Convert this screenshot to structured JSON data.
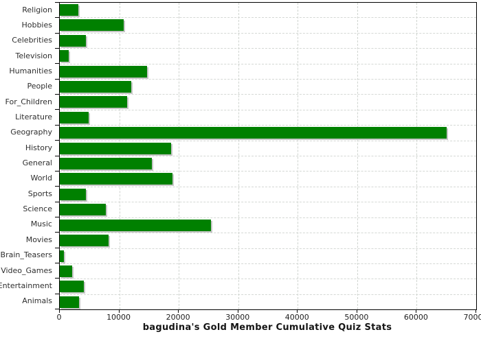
{
  "chart_data": {
    "type": "bar",
    "orientation": "horizontal",
    "title": "bagudina's Gold Member Cumulative Quiz Stats",
    "categories": [
      "Religion",
      "Hobbies",
      "Celebrities",
      "Television",
      "Humanities",
      "People",
      "For_Children",
      "Literature",
      "Geography",
      "History",
      "General",
      "World",
      "Sports",
      "Science",
      "Music",
      "Movies",
      "Brain_Teasers",
      "Video_Games",
      "Entertainment",
      "Animals"
    ],
    "values": [
      3150,
      10700,
      4400,
      1500,
      14700,
      12000,
      11300,
      4850,
      65000,
      18700,
      15500,
      19000,
      4400,
      7750,
      25400,
      8200,
      650,
      2100,
      4050,
      3250
    ],
    "xlim": [
      0,
      70000
    ],
    "xticks": [
      0,
      10000,
      20000,
      30000,
      40000,
      50000,
      60000,
      70000
    ],
    "grid": "dashed-both",
    "legend": "none",
    "bar_color": "#008000",
    "bar_shadow_color": "#c6c6c6",
    "gridline_color": "#d4d8d4",
    "axis_color": "#000000",
    "background_color": "#ffffff"
  }
}
